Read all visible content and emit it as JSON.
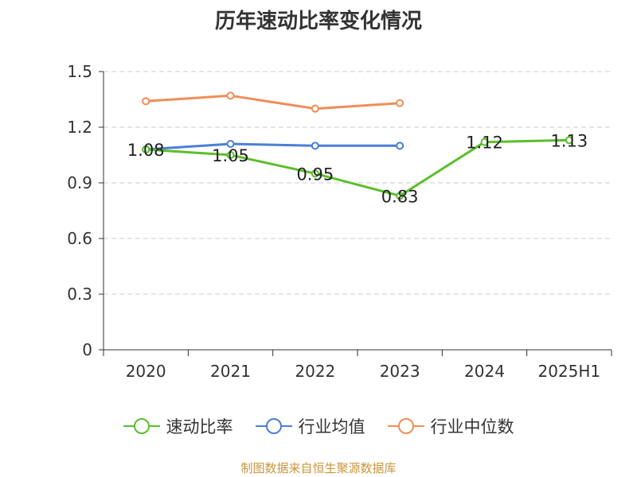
{
  "title": "历年速动比率变化情况",
  "footer": "制图数据来自恒生聚源数据库",
  "colors": {
    "速动比率": "#5bbf2b",
    "行业均值": "#4a7fd6",
    "行业中位数": "#f28c58",
    "grid": "#cccccc",
    "axis": "#333333"
  },
  "legend": [
    {
      "name": "速动比率",
      "color": "#5bbf2b"
    },
    {
      "name": "行业均值",
      "color": "#4a7fd6"
    },
    {
      "name": "行业中位数",
      "color": "#f28c58"
    }
  ],
  "chart_data": {
    "type": "line",
    "title": "历年速动比率变化情况",
    "xlabel": "",
    "ylabel": "",
    "categories": [
      "2020",
      "2021",
      "2022",
      "2023",
      "2024",
      "2025H1"
    ],
    "ylim": [
      0,
      1.5
    ],
    "yticks": [
      "0",
      "0.3",
      "0.6",
      "0.9",
      "1.2",
      "1.5"
    ],
    "grid": true,
    "legend_position": "bottom",
    "series": [
      {
        "name": "速动比率",
        "values": [
          1.08,
          1.05,
          0.95,
          0.83,
          1.12,
          1.13
        ],
        "labels": [
          "1.08",
          "1.05",
          "0.95",
          "0.83",
          "1.12",
          "1.13"
        ]
      },
      {
        "name": "行业均值",
        "values": [
          1.08,
          1.11,
          1.1,
          1.1,
          null,
          null
        ]
      },
      {
        "name": "行业中位数",
        "values": [
          1.34,
          1.37,
          1.3,
          1.33,
          null,
          null
        ]
      }
    ]
  }
}
